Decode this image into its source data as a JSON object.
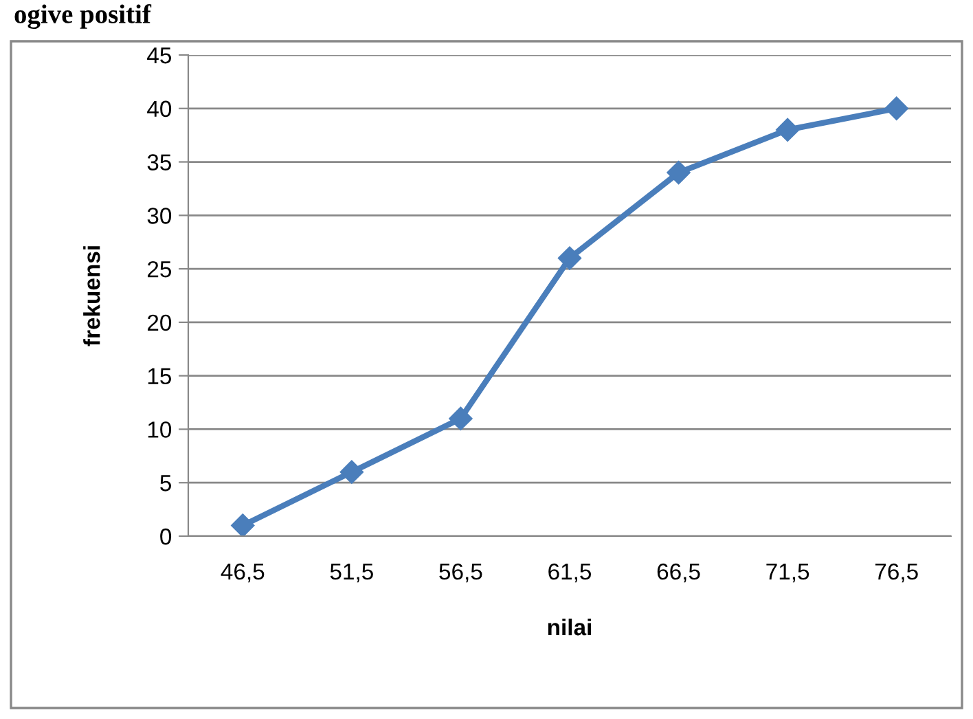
{
  "chart_data": {
    "type": "line",
    "title": "ogive positif",
    "xlabel": "nilai",
    "ylabel": "frekuensi",
    "categories": [
      "46,5",
      "51,5",
      "56,5",
      "61,5",
      "66,5",
      "71,5",
      "76,5"
    ],
    "series": [
      {
        "color": "#4a7ebb",
        "values": [
          1,
          6,
          11,
          26,
          34,
          38,
          40
        ]
      }
    ],
    "ylim": [
      0,
      45
    ],
    "yticks": [
      0,
      5,
      10,
      15,
      20,
      25,
      30,
      35,
      40,
      45
    ],
    "grid": "y",
    "marker": "diamond",
    "line_style": "solid",
    "legend": false
  }
}
